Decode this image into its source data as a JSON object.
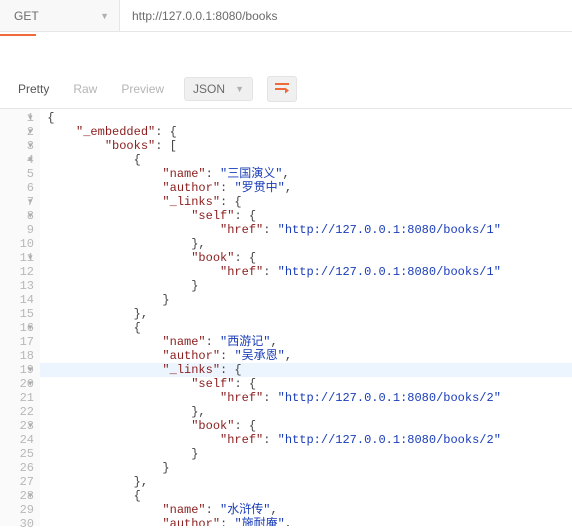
{
  "request": {
    "method": "GET",
    "url": "http://127.0.0.1:8080/books"
  },
  "tabs": {
    "pretty": "Pretty",
    "raw": "Raw",
    "preview": "Preview",
    "format_label": "JSON"
  },
  "colors": {
    "accent": "#ed6b3a",
    "key": "#8b1d1d",
    "string": "#1a3db8",
    "punct": "#444444",
    "gutter_text": "#b8b8b8",
    "highlight_bg": "#ecf5fd"
  },
  "highlighted_line": 19,
  "code_lines": [
    {
      "n": 1,
      "fold": true,
      "indent": 0,
      "segs": [
        {
          "t": "{",
          "c": "p"
        }
      ]
    },
    {
      "n": 2,
      "fold": true,
      "indent": 1,
      "segs": [
        {
          "t": "\"_embedded\"",
          "c": "k"
        },
        {
          "t": ": {",
          "c": "p"
        }
      ]
    },
    {
      "n": 3,
      "fold": true,
      "indent": 2,
      "segs": [
        {
          "t": "\"books\"",
          "c": "k"
        },
        {
          "t": ": [",
          "c": "p"
        }
      ]
    },
    {
      "n": 4,
      "fold": true,
      "indent": 3,
      "segs": [
        {
          "t": "{",
          "c": "p"
        }
      ]
    },
    {
      "n": 5,
      "fold": false,
      "indent": 4,
      "segs": [
        {
          "t": "\"name\"",
          "c": "k"
        },
        {
          "t": ": ",
          "c": "p"
        },
        {
          "t": "\"三国演义\"",
          "c": "s"
        },
        {
          "t": ",",
          "c": "p"
        }
      ]
    },
    {
      "n": 6,
      "fold": false,
      "indent": 4,
      "segs": [
        {
          "t": "\"author\"",
          "c": "k"
        },
        {
          "t": ": ",
          "c": "p"
        },
        {
          "t": "\"罗贯中\"",
          "c": "s"
        },
        {
          "t": ",",
          "c": "p"
        }
      ]
    },
    {
      "n": 7,
      "fold": true,
      "indent": 4,
      "segs": [
        {
          "t": "\"_links\"",
          "c": "k"
        },
        {
          "t": ": {",
          "c": "p"
        }
      ]
    },
    {
      "n": 8,
      "fold": true,
      "indent": 5,
      "segs": [
        {
          "t": "\"self\"",
          "c": "k"
        },
        {
          "t": ": {",
          "c": "p"
        }
      ]
    },
    {
      "n": 9,
      "fold": false,
      "indent": 6,
      "segs": [
        {
          "t": "\"href\"",
          "c": "k"
        },
        {
          "t": ": ",
          "c": "p"
        },
        {
          "t": "\"http://127.0.0.1:8080/books/1\"",
          "c": "s"
        }
      ]
    },
    {
      "n": 10,
      "fold": false,
      "indent": 5,
      "segs": [
        {
          "t": "},",
          "c": "p"
        }
      ]
    },
    {
      "n": 11,
      "fold": true,
      "indent": 5,
      "segs": [
        {
          "t": "\"book\"",
          "c": "k"
        },
        {
          "t": ": {",
          "c": "p"
        }
      ]
    },
    {
      "n": 12,
      "fold": false,
      "indent": 6,
      "segs": [
        {
          "t": "\"href\"",
          "c": "k"
        },
        {
          "t": ": ",
          "c": "p"
        },
        {
          "t": "\"http://127.0.0.1:8080/books/1\"",
          "c": "s"
        }
      ]
    },
    {
      "n": 13,
      "fold": false,
      "indent": 5,
      "segs": [
        {
          "t": "}",
          "c": "p"
        }
      ]
    },
    {
      "n": 14,
      "fold": false,
      "indent": 4,
      "segs": [
        {
          "t": "}",
          "c": "p"
        }
      ]
    },
    {
      "n": 15,
      "fold": false,
      "indent": 3,
      "segs": [
        {
          "t": "},",
          "c": "p"
        }
      ]
    },
    {
      "n": 16,
      "fold": true,
      "indent": 3,
      "segs": [
        {
          "t": "{",
          "c": "p"
        }
      ]
    },
    {
      "n": 17,
      "fold": false,
      "indent": 4,
      "segs": [
        {
          "t": "\"name\"",
          "c": "k"
        },
        {
          "t": ": ",
          "c": "p"
        },
        {
          "t": "\"西游记\"",
          "c": "s"
        },
        {
          "t": ",",
          "c": "p"
        }
      ]
    },
    {
      "n": 18,
      "fold": false,
      "indent": 4,
      "segs": [
        {
          "t": "\"author\"",
          "c": "k"
        },
        {
          "t": ": ",
          "c": "p"
        },
        {
          "t": "\"吴承恩\"",
          "c": "s"
        },
        {
          "t": ",",
          "c": "p"
        }
      ]
    },
    {
      "n": 19,
      "fold": true,
      "indent": 4,
      "segs": [
        {
          "t": "\"_links\"",
          "c": "k"
        },
        {
          "t": ": {",
          "c": "p"
        }
      ]
    },
    {
      "n": 20,
      "fold": true,
      "indent": 5,
      "segs": [
        {
          "t": "\"self\"",
          "c": "k"
        },
        {
          "t": ": {",
          "c": "p"
        }
      ]
    },
    {
      "n": 21,
      "fold": false,
      "indent": 6,
      "segs": [
        {
          "t": "\"href\"",
          "c": "k"
        },
        {
          "t": ": ",
          "c": "p"
        },
        {
          "t": "\"http://127.0.0.1:8080/books/2\"",
          "c": "s"
        }
      ]
    },
    {
      "n": 22,
      "fold": false,
      "indent": 5,
      "segs": [
        {
          "t": "},",
          "c": "p"
        }
      ]
    },
    {
      "n": 23,
      "fold": true,
      "indent": 5,
      "segs": [
        {
          "t": "\"book\"",
          "c": "k"
        },
        {
          "t": ": {",
          "c": "p"
        }
      ]
    },
    {
      "n": 24,
      "fold": false,
      "indent": 6,
      "segs": [
        {
          "t": "\"href\"",
          "c": "k"
        },
        {
          "t": ": ",
          "c": "p"
        },
        {
          "t": "\"http://127.0.0.1:8080/books/2\"",
          "c": "s"
        }
      ]
    },
    {
      "n": 25,
      "fold": false,
      "indent": 5,
      "segs": [
        {
          "t": "}",
          "c": "p"
        }
      ]
    },
    {
      "n": 26,
      "fold": false,
      "indent": 4,
      "segs": [
        {
          "t": "}",
          "c": "p"
        }
      ]
    },
    {
      "n": 27,
      "fold": false,
      "indent": 3,
      "segs": [
        {
          "t": "},",
          "c": "p"
        }
      ]
    },
    {
      "n": 28,
      "fold": true,
      "indent": 3,
      "segs": [
        {
          "t": "{",
          "c": "p"
        }
      ]
    },
    {
      "n": 29,
      "fold": false,
      "indent": 4,
      "segs": [
        {
          "t": "\"name\"",
          "c": "k"
        },
        {
          "t": ": ",
          "c": "p"
        },
        {
          "t": "\"水浒传\"",
          "c": "s"
        },
        {
          "t": ",",
          "c": "p"
        }
      ]
    },
    {
      "n": 30,
      "fold": false,
      "indent": 4,
      "segs": [
        {
          "t": "\"author\"",
          "c": "k"
        },
        {
          "t": ": ",
          "c": "p"
        },
        {
          "t": "\"施耐庵\"",
          "c": "s"
        },
        {
          "t": ",",
          "c": "p"
        }
      ]
    }
  ]
}
